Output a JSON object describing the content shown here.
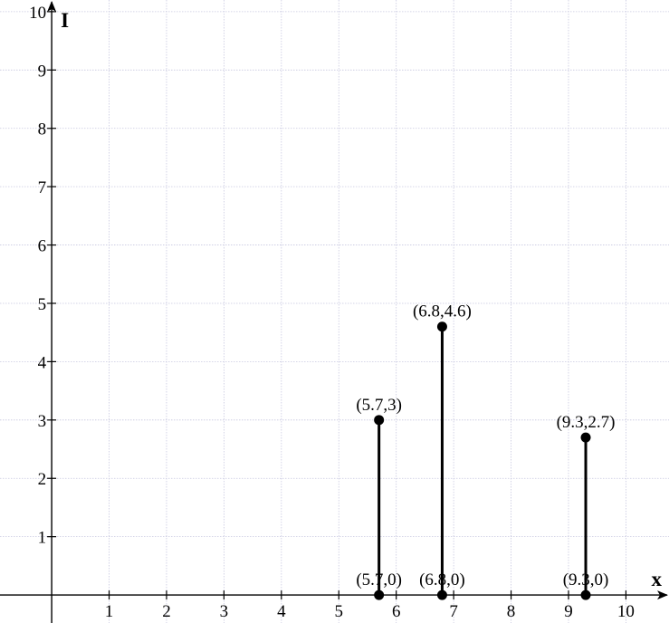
{
  "chart_data": {
    "type": "stem",
    "xlabel": "x",
    "ylabel": "I",
    "xlim": [
      -0.9,
      10.75
    ],
    "ylim": [
      -0.48,
      10.2
    ],
    "x_ticks": [
      1,
      2,
      3,
      4,
      5,
      6,
      7,
      8,
      9,
      10
    ],
    "y_ticks": [
      1,
      2,
      3,
      4,
      5,
      6,
      7,
      8,
      9,
      10
    ],
    "grid": true,
    "stems": [
      {
        "x": 5.7,
        "y": 3,
        "top_label": "(5.7,3)",
        "base_label": "(5.7,0)"
      },
      {
        "x": 6.8,
        "y": 4.6,
        "top_label": "(6.8,4.6)",
        "base_label": "(6.8,0)"
      },
      {
        "x": 9.3,
        "y": 2.7,
        "top_label": "(9.3,2.7)",
        "base_label": "(9.3,0)"
      }
    ],
    "colors": {
      "stem": "#000000",
      "grid": "#c8c8e0",
      "axis": "#000000"
    }
  }
}
